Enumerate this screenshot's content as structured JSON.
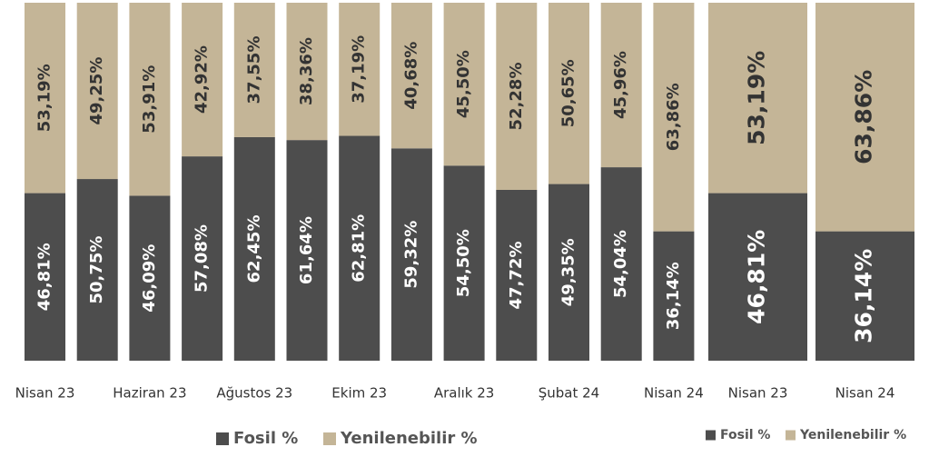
{
  "chart_data": [
    {
      "type": "stacked_bar",
      "categories": [
        "Nisan 23",
        null,
        "Haziran 23",
        null,
        "Ağustos 23",
        null,
        "Ekim 23",
        null,
        "Aralık 23",
        null,
        "Şubat 24",
        null,
        "Nisan 24"
      ],
      "series": [
        {
          "name": "Fosil %",
          "color": "#4d4d4d",
          "values": [
            46.81,
            50.75,
            46.09,
            57.08,
            62.45,
            61.64,
            62.81,
            59.32,
            54.5,
            47.72,
            49.35,
            54.04,
            36.14
          ],
          "value_labels": [
            "46,81%",
            "50,75%",
            "46,09%",
            "57,08%",
            "62,45%",
            "61,64%",
            "62,81%",
            "59,32%",
            "54,50%",
            "47,72%",
            "49,35%",
            "54,04%",
            "36,14%"
          ]
        },
        {
          "name": "Yenilenebilir %",
          "color": "#c4b597",
          "values": [
            53.19,
            49.25,
            53.91,
            42.92,
            37.55,
            38.36,
            37.19,
            40.68,
            45.5,
            52.28,
            50.65,
            45.96,
            63.86
          ],
          "value_labels": [
            "53,19%",
            "49,25%",
            "53,91%",
            "42,92%",
            "37,55%",
            "38,36%",
            "37,19%",
            "40,68%",
            "45,50%",
            "52,28%",
            "50,65%",
            "45,96%",
            "63,86%"
          ]
        }
      ]
    },
    {
      "type": "stacked_bar",
      "categories": [
        "Nisan 23",
        "Nisan 24"
      ],
      "series": [
        {
          "name": "Fosil %",
          "color": "#4d4d4d",
          "values": [
            46.81,
            36.14
          ],
          "value_labels": [
            "46,81%",
            "36,14%"
          ]
        },
        {
          "name": "Yenilenebilir %",
          "color": "#c4b597",
          "values": [
            53.19,
            63.86
          ],
          "value_labels": [
            "53,19%",
            "63,86%"
          ]
        }
      ]
    }
  ]
}
